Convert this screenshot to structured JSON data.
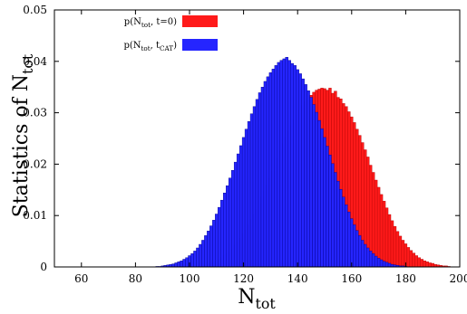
{
  "chart_data": {
    "type": "bar",
    "xlim": [
      50,
      200
    ],
    "ylim": [
      0,
      0.05
    ],
    "xticks": [
      "60",
      "80",
      "100",
      "120",
      "140",
      "160",
      "180",
      "200"
    ],
    "yticks": [
      "0",
      "0.01",
      "0.02",
      "0.03",
      "0.04",
      "0.05"
    ],
    "xlabel": {
      "base": "N",
      "sub": "tot"
    },
    "ylabel": {
      "base": "Statistics of N",
      "sub": "tot"
    },
    "bin_width": 1,
    "legend_position": "top-left",
    "series": [
      {
        "legend": {
          "base": "p(N",
          "sub1": "tot",
          "mid": ", t=0)",
          "sub2": "",
          "end": ""
        },
        "color": "#ff1a1a",
        "edge": "#b00000",
        "x_start": 104,
        "values": [
          0.0002,
          0.0003,
          0.0005,
          0.0006,
          0.0008,
          0.001,
          0.0012,
          0.0015,
          0.0018,
          0.0022,
          0.0026,
          0.003,
          0.0036,
          0.0042,
          0.0048,
          0.0056,
          0.0064,
          0.0072,
          0.0082,
          0.0092,
          0.0102,
          0.0112,
          0.0124,
          0.0136,
          0.0148,
          0.016,
          0.0172,
          0.0186,
          0.0199,
          0.0212,
          0.0226,
          0.024,
          0.0252,
          0.0264,
          0.0275,
          0.0286,
          0.0296,
          0.0305,
          0.0314,
          0.0322,
          0.0328,
          0.0334,
          0.034,
          0.0344,
          0.0346,
          0.0348,
          0.0347,
          0.0344,
          0.0348,
          0.0338,
          0.0342,
          0.033,
          0.0327,
          0.0318,
          0.0312,
          0.0302,
          0.0292,
          0.0281,
          0.0268,
          0.0256,
          0.0242,
          0.0228,
          0.0214,
          0.0198,
          0.0184,
          0.0169,
          0.0155,
          0.0141,
          0.0128,
          0.0115,
          0.0102,
          0.009,
          0.0079,
          0.0069,
          0.006,
          0.0052,
          0.0045,
          0.0038,
          0.0032,
          0.0027,
          0.0022,
          0.0018,
          0.0015,
          0.0012,
          0.001,
          0.0008,
          0.0007,
          0.0005,
          0.0004,
          0.0003,
          0.0002,
          0.0002,
          0.0001
        ]
      },
      {
        "legend": {
          "base": "p(N",
          "sub1": "tot",
          "mid": ", t",
          "sub2": "CAT",
          "end": ")"
        },
        "color": "#2525ff",
        "edge": "#00008b",
        "x_start": 88,
        "values": [
          0.0001,
          0.0001,
          0.0002,
          0.0003,
          0.0004,
          0.0005,
          0.0006,
          0.0008,
          0.001,
          0.0012,
          0.0015,
          0.0018,
          0.0022,
          0.0026,
          0.0031,
          0.0037,
          0.0044,
          0.0052,
          0.0061,
          0.007,
          0.008,
          0.0091,
          0.0103,
          0.0116,
          0.013,
          0.0144,
          0.0158,
          0.0173,
          0.0188,
          0.0204,
          0.022,
          0.0236,
          0.0252,
          0.0268,
          0.0283,
          0.0298,
          0.0312,
          0.0326,
          0.0339,
          0.035,
          0.0361,
          0.037,
          0.0378,
          0.0385,
          0.0392,
          0.0398,
          0.0402,
          0.0405,
          0.0408,
          0.0402,
          0.0396,
          0.0392,
          0.0384,
          0.0376,
          0.0366,
          0.0355,
          0.0343,
          0.033,
          0.0316,
          0.0301,
          0.0285,
          0.0269,
          0.0252,
          0.0235,
          0.0218,
          0.0201,
          0.0184,
          0.0167,
          0.0151,
          0.0136,
          0.0121,
          0.0107,
          0.0094,
          0.0082,
          0.0071,
          0.0061,
          0.0052,
          0.0044,
          0.0037,
          0.0031,
          0.0026,
          0.0021,
          0.0017,
          0.0014,
          0.0011,
          0.0009,
          0.0007,
          0.0005,
          0.0004,
          0.0003,
          0.0002,
          0.0002,
          0.0001
        ]
      }
    ]
  }
}
